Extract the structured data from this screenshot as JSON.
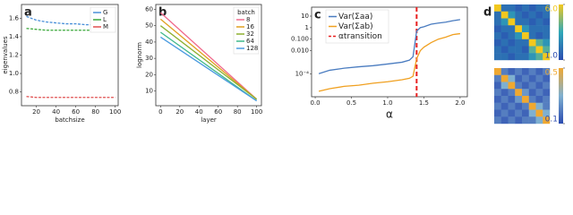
{
  "chart_data": [
    {
      "type": "line",
      "panel": "a",
      "xlabel": "batchsize",
      "ylabel": "eigenvalues",
      "x": [
        10,
        20,
        30,
        40,
        50,
        60,
        70,
        80,
        90,
        100
      ],
      "series": [
        {
          "name": "G",
          "color": "#4a90d9",
          "values": [
            1.62,
            1.58,
            1.56,
            1.55,
            1.54,
            1.54,
            1.53,
            1.53,
            1.53,
            1.53
          ]
        },
        {
          "name": "L",
          "color": "#3aa83a",
          "values": [
            1.49,
            1.48,
            1.47,
            1.47,
            1.47,
            1.47,
            1.47,
            1.47,
            1.47,
            1.47
          ]
        },
        {
          "name": "M",
          "color": "#e05050",
          "values": [
            0.75,
            0.74,
            0.74,
            0.74,
            0.74,
            0.74,
            0.74,
            0.74,
            0.74,
            0.74
          ]
        }
      ],
      "xlim": [
        5,
        103
      ],
      "xticks": [
        20,
        40,
        60,
        80,
        100
      ],
      "ylim": [
        0.65,
        1.75
      ],
      "yticks": [
        0.8,
        {
          "value": 1,
          "label": "1.0"
        },
        1.2,
        1.4,
        1.6
      ],
      "legend_loc": "upper right"
    },
    {
      "type": "line",
      "panel": "b",
      "xlabel": "layer",
      "ylabel": "lognorm",
      "legend_title": "batch",
      "x": [
        0,
        100
      ],
      "series": [
        {
          "name": "8",
          "color": "#f06a8c",
          "values": [
            58,
            5
          ]
        },
        {
          "name": "16",
          "color": "#e0a020",
          "values": [
            54,
            5
          ]
        },
        {
          "name": "32",
          "color": "#8db030",
          "values": [
            50,
            5
          ]
        },
        {
          "name": "64",
          "color": "#3fb88a",
          "values": [
            46,
            4
          ]
        },
        {
          "name": "128",
          "color": "#4a9be0",
          "values": [
            43,
            4
          ]
        }
      ],
      "xlim": [
        -5,
        105
      ],
      "xticks": [
        0,
        20,
        40,
        60,
        80,
        100
      ],
      "ylim": [
        1,
        63
      ],
      "yticks": [
        10,
        20,
        30,
        40,
        50,
        60
      ],
      "legend_loc": "upper right"
    },
    {
      "type": "line",
      "panel": "c",
      "xlabel": "α",
      "log_y": true,
      "x": [
        0.05,
        0.2,
        0.4,
        0.6,
        0.8,
        1.0,
        1.2,
        1.3,
        1.35,
        1.4,
        1.45,
        1.5,
        1.6,
        1.7,
        1.8,
        1.9,
        2.0
      ],
      "series": [
        {
          "name": "Var(Σaa)",
          "color": "#4a7cc0",
          "values": [
            0.0001,
            0.0002,
            0.0003,
            0.0004,
            0.0005,
            0.0007,
            0.001,
            0.0015,
            0.003,
            0.5,
            1,
            1.2,
            2,
            2.5,
            3,
            4,
            5
          ]
        },
        {
          "name": "Var(Σab)",
          "color": "#f0a020",
          "values": [
            3e-06,
            5e-06,
            8e-06,
            1e-05,
            1.5e-05,
            2e-05,
            3e-05,
            4e-05,
            6e-05,
            0.002,
            0.01,
            0.02,
            0.05,
            0.1,
            0.15,
            0.25,
            0.3
          ]
        }
      ],
      "vline": {
        "x": 1.4,
        "label": "αtransition",
        "color": "#e82020"
      },
      "xlim": [
        -0.05,
        2.1
      ],
      "xticks": [
        {
          "value": 0,
          "label": "0.0"
        },
        0.5,
        {
          "value": 1,
          "label": "1.0"
        },
        1.5,
        {
          "value": 2,
          "label": "2.0"
        }
      ],
      "ylim": [
        1e-06,
        60
      ],
      "yticks": [
        {
          "value": 0.0001,
          "label": "10⁻⁴"
        },
        {
          "value": 0.01,
          "label": "0.010"
        },
        {
          "value": 0.1,
          "label": "0.100"
        },
        1,
        10
      ],
      "legend_loc": "upper left"
    },
    {
      "type": "heatmap",
      "panel": "d",
      "matrices": [
        {
          "zlim": [
            1,
            6
          ],
          "zticks": [
            {
              "value": 6,
              "label": "6.0"
            },
            {
              "value": 1,
              "label": "1.0"
            }
          ],
          "colors": [
            "#2a4bb0",
            "#2fa8b8",
            "#f2c81e"
          ],
          "values": [
            [
              6,
              2,
              2,
              1.5,
              2,
              1.5,
              2,
              2
            ],
            [
              2,
              6,
              3,
              2,
              1.5,
              2,
              1.5,
              2
            ],
            [
              2,
              3,
              6,
              2,
              2,
              1.5,
              2,
              1.5
            ],
            [
              1.5,
              2,
              2,
              6,
              3,
              2,
              2,
              2
            ],
            [
              2,
              1.5,
              2,
              3,
              6,
              2,
              1.5,
              2
            ],
            [
              1.5,
              2,
              1.5,
              2,
              2,
              6,
              4,
              3
            ],
            [
              2,
              1.5,
              2,
              2,
              1.5,
              4,
              6,
              4
            ],
            [
              2,
              2,
              1.5,
              2,
              2,
              3,
              4,
              6
            ]
          ]
        },
        {
          "zlim": [
            0.1,
            0.5
          ],
          "zticks": [
            {
              "value": 0.5,
              "label": "0.5"
            },
            {
              "value": 0.1,
              "label": "0.1"
            }
          ],
          "colors": [
            "#2a4bb0",
            "#7fb0d0",
            "#f0a830"
          ],
          "values": [
            [
              0.5,
              0.2,
              0.15,
              0.2,
              0.15,
              0.2,
              0.15,
              0.2
            ],
            [
              0.2,
              0.5,
              0.3,
              0.15,
              0.2,
              0.15,
              0.2,
              0.15
            ],
            [
              0.15,
              0.3,
              0.5,
              0.2,
              0.15,
              0.2,
              0.15,
              0.2
            ],
            [
              0.2,
              0.15,
              0.2,
              0.5,
              0.25,
              0.15,
              0.2,
              0.15
            ],
            [
              0.15,
              0.2,
              0.15,
              0.25,
              0.5,
              0.2,
              0.15,
              0.2
            ],
            [
              0.2,
              0.15,
              0.2,
              0.15,
              0.2,
              0.5,
              0.3,
              0.2
            ],
            [
              0.15,
              0.2,
              0.15,
              0.2,
              0.15,
              0.3,
              0.5,
              0.3
            ],
            [
              0.2,
              0.15,
              0.2,
              0.15,
              0.2,
              0.2,
              0.3,
              0.5
            ]
          ]
        }
      ]
    }
  ]
}
